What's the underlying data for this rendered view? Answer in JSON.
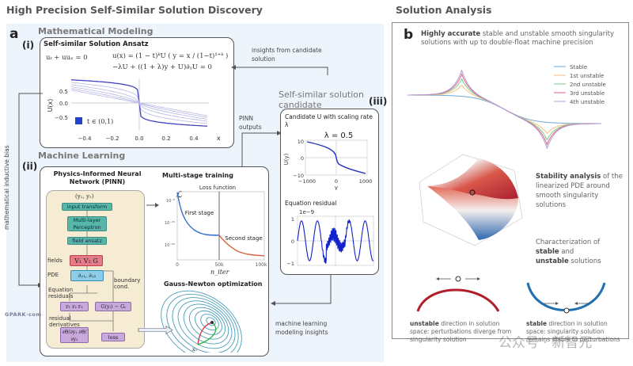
{
  "title_left": "High Precision Self-Similar Solution Discovery",
  "title_right": "Solution Analysis",
  "panel_a": {
    "label": "a",
    "math_modeling": "Mathematical Modeling",
    "roman_i": "(i)",
    "roman_ii": "(ii)",
    "roman_iii": "(iii)",
    "ansatz": {
      "title": "Self-similar Solution Ansatz",
      "eq1": "uₜ + uuₓ = 0",
      "eq2": "u(x) = (1 − t)ᵏU ( y = x / (1−t)¹⁺ᵏ )",
      "eq3": "−λU + ((1 + λ)y + U)∂ᵧU = 0",
      "chart_legend": "t ∈ (0,1)",
      "ylabel": "U(x)",
      "xlabel": "x",
      "yticks": [
        "0.5",
        "0.0",
        "−0.5"
      ],
      "xticks": [
        "−0.4",
        "−0.2",
        "0.0",
        "0.2",
        "0.4"
      ]
    },
    "insights_from_candidate": "insights from candidate solution",
    "candidate_section_title": "Self-similar solution candidate",
    "pinn_outputs": "PINN outputs",
    "candidate": {
      "title": "Candidate U with scaling rate λ",
      "lambda_label": "λ = 0.5",
      "ylabel": "U(y)",
      "xlabel": "y",
      "yticks": [
        "10",
        "0",
        "−10"
      ],
      "xticks": [
        "−1000",
        "0",
        "1000"
      ],
      "residual_title": "Equation residual",
      "residual_scale": "1e−9",
      "residual_yticks": [
        "1",
        "0",
        "−1"
      ]
    },
    "math_inductive_bias": "mathematical inductive bias",
    "machine_learning": "Machine Learning",
    "pinn": {
      "title": "Physics-Informed Neural Network (PINN)",
      "inputs": "(y₁, y₂)",
      "input_transform": "input transform",
      "mlp": "Multi-layer Perceptron",
      "field_ansatz": "field ansatz",
      "fields_label": "fields",
      "fields": "V₁ V₂ G",
      "pde_label": "PDE",
      "pde": "∂ᵧ₁, ∂ᵧ₂",
      "boundary_cond": "boundary cond.",
      "eq_residuals": "Equation residuals",
      "residuals": "r₁ r₂ r₃",
      "boundary": "G(yᵢ) − Gᵢ",
      "residual_derivatives": "residual derivatives",
      "derivs": "∂Θ/∂y₁ ∂Θ/∂y₂",
      "loss": "loss"
    },
    "multistage": {
      "title": "Multi-stage training",
      "chart_title": "Loss function",
      "ylabel": "ℒ",
      "yticks": [
        "10⁻⁵",
        "10⁻¹⁵",
        "10⁻²⁵"
      ],
      "xticks": [
        "0",
        "50k",
        "100k"
      ],
      "xlabel": "n_iter",
      "first_stage": "First stage",
      "second_stage": "Second stage"
    },
    "gauss_newton": "Gauss-Newton optimization",
    "x0_label": "x₀",
    "ml_insights": "machine learning modeling insights",
    "watermark_site": "GPARK·com"
  },
  "panel_b": {
    "label": "b",
    "accurate_bold": "Highly accurate",
    "accurate_rest": " stable and unstable smooth singularity solutions with up to double-float machine precision",
    "legend": [
      {
        "name": "Stable",
        "color": "#6fa8d6"
      },
      {
        "name": "1st unstable",
        "color": "#f2c27f"
      },
      {
        "name": "2nd unstable",
        "color": "#7fc98f"
      },
      {
        "name": "3rd unstable",
        "color": "#d9687f"
      },
      {
        "name": "4th unstable",
        "color": "#b79ad9"
      }
    ],
    "stability_bold": "Stability analysis",
    "stability_rest": " of the linearized PDE around smooth singularity solutions",
    "char_line1": "Characterization of",
    "char_stable": "stable",
    "char_and": " and",
    "char_unstable": "unstable",
    "char_solutions": " solutions",
    "unstable_bold": "unstable",
    "unstable_rest": " direction in solution space: perturbations diverge from singularity solution",
    "stable_bold": "stable",
    "stable_rest": " direction in solution space: singularity solution remains stable to perturbations",
    "watermark": "公众号 · 新智元"
  }
}
